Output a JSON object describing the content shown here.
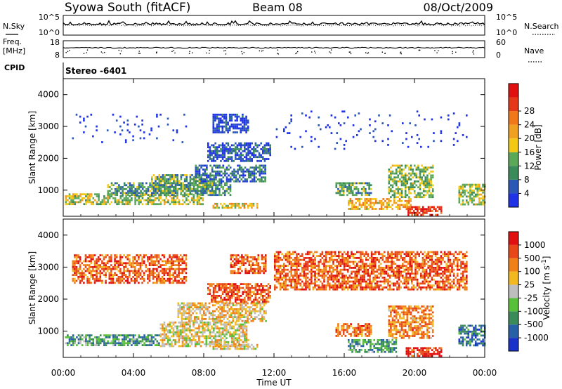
{
  "header": {
    "station": "Syowa South (fitACF)",
    "beam": "Beam 08",
    "date": "08/Oct/2009"
  },
  "left_labels": {
    "nsky": "N.Sky",
    "freq": "Freq.",
    "freq_unit": "[MHz]",
    "cpid": "CPID"
  },
  "right_labels": {
    "nsearch": "N.Search",
    "nave": "Nave"
  },
  "noise_ticks": {
    "left": [
      "10^5",
      "10^0"
    ],
    "right": [
      "10^5",
      "10^0"
    ]
  },
  "freq_ticks": {
    "left": [
      "18",
      "8"
    ],
    "right": [
      "60",
      "0"
    ]
  },
  "cpid_text": "Stereo -6401",
  "chart_data": [
    {
      "type": "line",
      "name": "noise",
      "series": [
        {
          "name": "N.Sky",
          "style": "solid"
        },
        {
          "name": "N.Search",
          "style": "dotted"
        }
      ],
      "ylim_left": [
        "10^0",
        "10^5"
      ],
      "ylim_right": [
        "10^0",
        "10^5"
      ]
    },
    {
      "type": "line",
      "name": "frequency",
      "series": [
        {
          "name": "Freq. [MHz]",
          "axis": "left"
        },
        {
          "name": "Nave",
          "axis": "right",
          "style": "dotted"
        }
      ],
      "ylim_left": [
        8,
        18
      ],
      "ylim_right": [
        0,
        60
      ]
    },
    {
      "type": "heatmap",
      "name": "power",
      "x_range_hours": [
        0,
        24
      ],
      "ylabel": "Slant Range [km]",
      "ylim": [
        180,
        4500
      ],
      "yticks": [
        1000,
        2000,
        3000,
        4000
      ],
      "colorbar": {
        "label": "Power [dB]",
        "ticks": [
          4,
          8,
          12,
          16,
          20,
          24,
          28
        ],
        "colors": [
          "#1f32e6",
          "#2a58b4",
          "#3a8a5a",
          "#5aa858",
          "#f2c814",
          "#f0a020",
          "#f07818",
          "#e43818",
          "#e01010"
        ]
      },
      "regions": [
        {
          "t": [
            0.1,
            8.0
          ],
          "r": [
            550,
            900
          ],
          "level": 0.45
        },
        {
          "t": [
            2.5,
            9.5
          ],
          "r": [
            850,
            1250
          ],
          "level": 0.3
        },
        {
          "t": [
            5.0,
            8.5
          ],
          "r": [
            1000,
            1500
          ],
          "level": 0.35
        },
        {
          "t": [
            7.5,
            11.5
          ],
          "r": [
            1300,
            1800
          ],
          "level": 0.2
        },
        {
          "t": [
            8.2,
            11.8
          ],
          "r": [
            1900,
            2500
          ],
          "level": 0.12
        },
        {
          "t": [
            8.5,
            10.5
          ],
          "r": [
            2800,
            3400
          ],
          "level": 0.08
        },
        {
          "t": [
            8.5,
            11.0
          ],
          "r": [
            420,
            600
          ],
          "level": 0.55
        },
        {
          "t": [
            15.5,
            17.5
          ],
          "r": [
            850,
            1250
          ],
          "level": 0.35
        },
        {
          "t": [
            16.2,
            19.8
          ],
          "r": [
            380,
            750
          ],
          "level": 0.6
        },
        {
          "t": [
            18.5,
            21.0
          ],
          "r": [
            800,
            1800
          ],
          "level": 0.4
        },
        {
          "t": [
            19.5,
            21.5
          ],
          "r": [
            200,
            500
          ],
          "level": 0.85
        },
        {
          "t": [
            22.5,
            24.0
          ],
          "r": [
            550,
            1200
          ],
          "level": 0.45
        },
        {
          "t": [
            0.5,
            7.0
          ],
          "r": [
            2500,
            3400
          ],
          "level": 0.02
        },
        {
          "t": [
            12.0,
            23.0
          ],
          "r": [
            2300,
            3500
          ],
          "level": 0.02
        }
      ]
    },
    {
      "type": "heatmap",
      "name": "velocity",
      "x_range_hours": [
        0,
        24
      ],
      "xticks": [
        "00:00",
        "04:00",
        "08:00",
        "12:00",
        "16:00",
        "20:00",
        "00:00"
      ],
      "xlabel": "Time UT",
      "ylabel": "Slant Range [km]",
      "ylim": [
        180,
        4500
      ],
      "yticks": [
        1000,
        2000,
        3000,
        4000
      ],
      "colorbar": {
        "label": "Velocity [m s^-1]",
        "ticks": [
          "1000",
          "500",
          "100",
          "25",
          "-25",
          "-100",
          "-500",
          "-1000"
        ],
        "colors": [
          "#1a32c8",
          "#2860a8",
          "#3a8a5a",
          "#58c038",
          "#bebebe",
          "#f2b820",
          "#f08018",
          "#e84818",
          "#e01010"
        ]
      },
      "regions": [
        {
          "t": [
            0.1,
            5.5
          ],
          "r": [
            550,
            900
          ],
          "level": 0.3
        },
        {
          "t": [
            5.5,
            10.5
          ],
          "r": [
            550,
            1300
          ],
          "level": 0.55
        },
        {
          "t": [
            6.5,
            11.5
          ],
          "r": [
            1300,
            1900
          ],
          "level": 0.6
        },
        {
          "t": [
            8.2,
            11.8
          ],
          "r": [
            1900,
            2500
          ],
          "level": 0.82
        },
        {
          "t": [
            8.5,
            11.0
          ],
          "r": [
            420,
            600
          ],
          "level": 0.55
        },
        {
          "t": [
            9.5,
            11.5
          ],
          "r": [
            2800,
            3400
          ],
          "level": 0.82
        },
        {
          "t": [
            15.5,
            17.5
          ],
          "r": [
            850,
            1250
          ],
          "level": 0.75
        },
        {
          "t": [
            16.2,
            19.0
          ],
          "r": [
            380,
            750
          ],
          "level": 0.3
        },
        {
          "t": [
            18.5,
            21.0
          ],
          "r": [
            800,
            1800
          ],
          "level": 0.72
        },
        {
          "t": [
            19.5,
            21.5
          ],
          "r": [
            200,
            500
          ],
          "level": 0.92
        },
        {
          "t": [
            22.5,
            24.0
          ],
          "r": [
            550,
            1200
          ],
          "level": 0.2
        },
        {
          "t": [
            0.5,
            7.0
          ],
          "r": [
            2500,
            3400
          ],
          "level": 0.8
        },
        {
          "t": [
            12.0,
            23.0
          ],
          "r": [
            2300,
            3500
          ],
          "level": 0.8
        }
      ]
    }
  ]
}
